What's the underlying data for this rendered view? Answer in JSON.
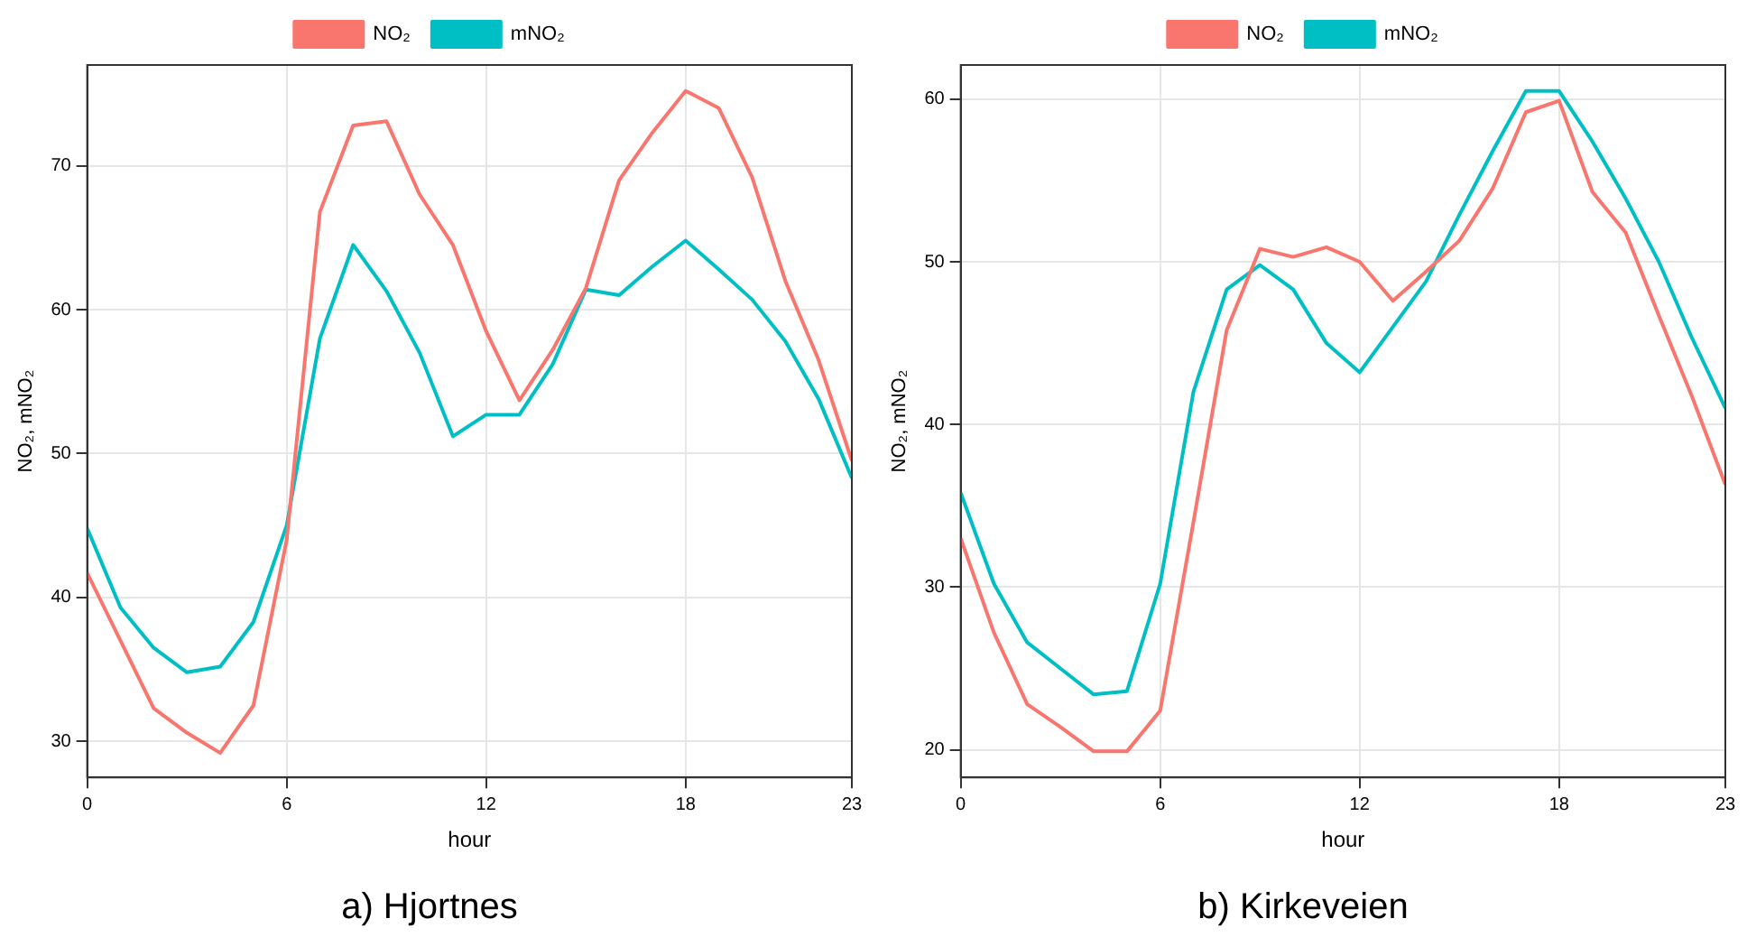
{
  "chart_data": [
    {
      "type": "line",
      "title": "a) Hjortnes",
      "xlabel": "hour",
      "ylabel": "NO₂, mNO₂",
      "x": [
        0,
        1,
        2,
        3,
        4,
        5,
        6,
        7,
        8,
        9,
        10,
        11,
        12,
        13,
        14,
        15,
        16,
        17,
        18,
        19,
        20,
        21,
        22,
        23
      ],
      "series": [
        {
          "name": "NO₂",
          "color": "#f8766d",
          "values": [
            41.7,
            37,
            32.3,
            30.6,
            29.2,
            32.5,
            44,
            66.8,
            72.8,
            73.1,
            68,
            64.5,
            58.5,
            53.7,
            57.2,
            61.5,
            69,
            72.3,
            75.2,
            74,
            69.2,
            62,
            56.5,
            49.5
          ]
        },
        {
          "name": "mNO₂",
          "color": "#00bfc4",
          "values": [
            44.8,
            39.3,
            36.5,
            34.8,
            35.2,
            38.3,
            45,
            58,
            64.5,
            61.3,
            57,
            51.2,
            52.7,
            52.7,
            56.2,
            61.4,
            61,
            63,
            64.8,
            62.8,
            60.7,
            57.8,
            53.8,
            48.3
          ]
        }
      ],
      "xlim": [
        0,
        23
      ],
      "xticks": [
        0,
        6,
        12,
        18,
        23
      ],
      "ylim": [
        27.5,
        77
      ],
      "yticks": [
        30,
        40,
        50,
        60,
        70
      ],
      "grid": true,
      "legend": "top",
      "marker": "none",
      "line_style": "solid"
    },
    {
      "type": "line",
      "title": "b) Kirkeveien",
      "xlabel": "hour",
      "ylabel": "NO₂, mNO₂",
      "x": [
        0,
        1,
        2,
        3,
        4,
        5,
        6,
        7,
        8,
        9,
        10,
        11,
        12,
        13,
        14,
        15,
        16,
        17,
        18,
        19,
        20,
        21,
        22,
        23
      ],
      "series": [
        {
          "name": "NO₂",
          "color": "#f8766d",
          "values": [
            33,
            27.2,
            22.8,
            21.4,
            19.9,
            19.9,
            22.4,
            34,
            45.8,
            50.8,
            50.3,
            50.9,
            50,
            47.6,
            49.4,
            51.3,
            54.5,
            59.2,
            59.9,
            54.3,
            51.8,
            46.7,
            41.7,
            36.3
          ]
        },
        {
          "name": "mNO₂",
          "color": "#00bfc4",
          "values": [
            35.8,
            30.2,
            26.6,
            25,
            23.4,
            23.6,
            30.2,
            42,
            48.3,
            49.8,
            48.3,
            45,
            43.2,
            46,
            48.8,
            52.9,
            56.8,
            60.5,
            60.5,
            57.4,
            53.9,
            50,
            45.3,
            41
          ]
        }
      ],
      "xlim": [
        0,
        23
      ],
      "xticks": [
        0,
        6,
        12,
        18,
        23
      ],
      "ylim": [
        18.3,
        62.1
      ],
      "yticks": [
        20,
        30,
        40,
        50,
        60
      ],
      "grid": true,
      "legend": "top",
      "marker": "none",
      "line_style": "solid"
    }
  ]
}
